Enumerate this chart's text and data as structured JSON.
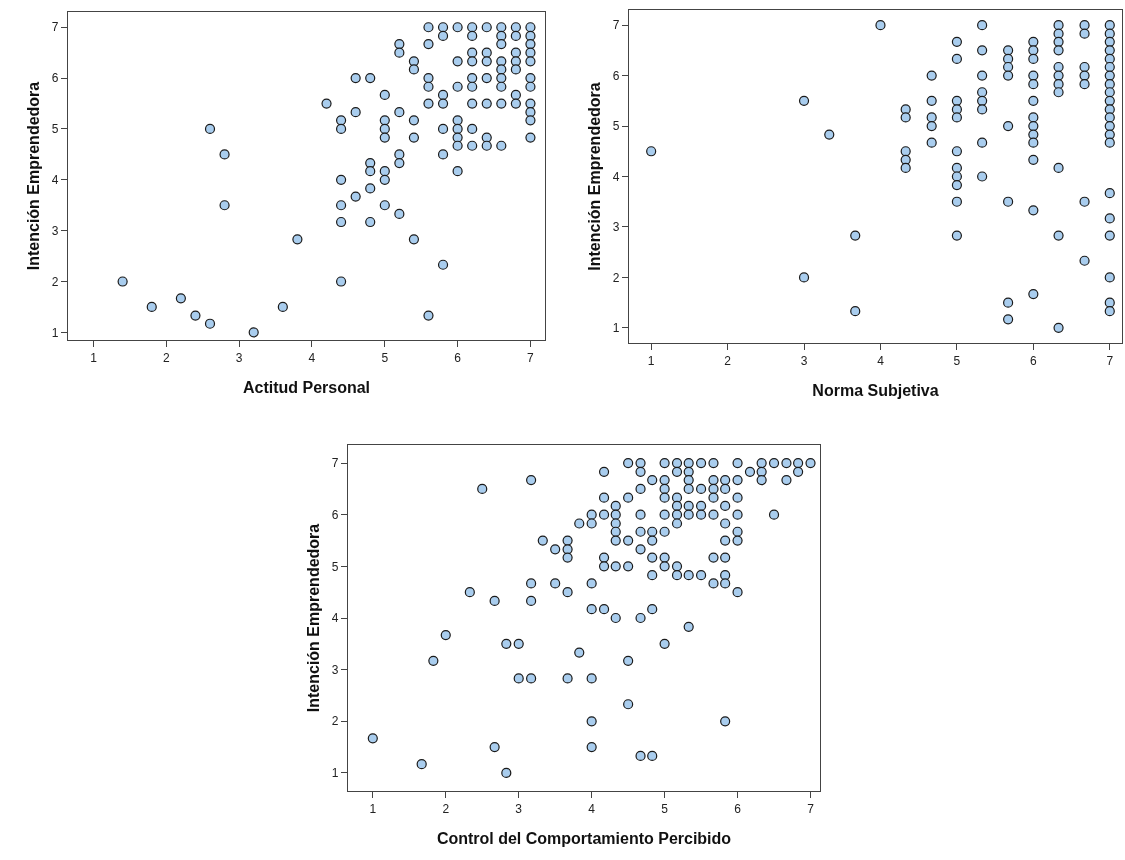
{
  "chart_data": [
    {
      "type": "scatter",
      "xlabel": "Actitud Personal",
      "ylabel": "Intención Emprendedora",
      "xlim": [
        0.65,
        7.2
      ],
      "ylim": [
        0.85,
        7.3
      ],
      "xticks": [
        1,
        2,
        3,
        4,
        5,
        6,
        7
      ],
      "yticks": [
        1,
        2,
        3,
        4,
        5,
        6,
        7
      ],
      "grid": false,
      "marker": "circle",
      "series": [
        {
          "color": "#a9cdee",
          "x": [
            1.4,
            1.8,
            2.2,
            2.4,
            2.6,
            2.6,
            2.8,
            2.8,
            3.2,
            3.6,
            3.8,
            4.2,
            4.4,
            4.4,
            4.4,
            4.4,
            4.4,
            4.4,
            4.6,
            4.6,
            4.6,
            4.8,
            4.8,
            4.8,
            4.8,
            4.8,
            5,
            5,
            5,
            5,
            5,
            5,
            5,
            5.2,
            5.2,
            5.2,
            5.2,
            5.2,
            5.2,
            5.4,
            5.4,
            5.4,
            5.4,
            5.4,
            5.6,
            5.6,
            5.6,
            5.6,
            5.6,
            5.6,
            5.8,
            5.8,
            5.8,
            5.8,
            5.8,
            5.8,
            5.8,
            6,
            6,
            6,
            6,
            6,
            6,
            6,
            6,
            6.2,
            6.2,
            6.2,
            6.2,
            6.2,
            6.2,
            6.2,
            6.2,
            6.2,
            6.4,
            6.4,
            6.4,
            6.4,
            6.4,
            6.4,
            6.4,
            6.6,
            6.6,
            6.6,
            6.6,
            6.6,
            6.6,
            6.6,
            6.6,
            6.6,
            6.8,
            6.8,
            6.8,
            6.8,
            6.8,
            6.8,
            6.8,
            7,
            7,
            7,
            7,
            7,
            7,
            7,
            7,
            7,
            7,
            7
          ],
          "values": [
            2,
            1.5,
            1.67,
            1.33,
            1.17,
            5,
            4.5,
            3.5,
            1,
            1.5,
            2.83,
            5.5,
            5.17,
            5,
            4,
            3.5,
            3.17,
            2,
            6,
            5.33,
            3.67,
            6,
            4.33,
            4.17,
            3.83,
            3.17,
            5.67,
            5.17,
            5,
            4.83,
            4.17,
            4,
            3.5,
            6.67,
            6.5,
            5.33,
            4.5,
            4.33,
            3.33,
            6.33,
            6.17,
            5.17,
            4.83,
            2.83,
            7,
            6.67,
            6,
            5.83,
            5.5,
            1.33,
            7,
            6.83,
            5.67,
            5.5,
            5,
            4.5,
            2.33,
            7,
            6.33,
            5.83,
            5.17,
            5,
            4.83,
            4.67,
            4.17,
            7,
            6.83,
            6.5,
            6.33,
            6,
            5.83,
            5.5,
            5,
            4.67,
            7,
            6.5,
            6.33,
            6,
            5.5,
            4.83,
            4.67,
            7,
            6.83,
            6.67,
            6.33,
            6.17,
            6,
            5.83,
            5.5,
            4.67,
            7,
            6.83,
            6.5,
            6.33,
            6.17,
            5.67,
            5.5,
            7,
            6.83,
            6.67,
            6.5,
            6.33,
            6,
            5.83,
            5.5,
            5.33,
            5.17,
            4.83
          ]
        }
      ]
    },
    {
      "type": "scatter",
      "xlabel": "Norma Subjetiva",
      "ylabel": "Intención Emprendedora",
      "xlim": [
        0.71,
        7.16
      ],
      "ylim": [
        0.7,
        7.3
      ],
      "xticks": [
        1,
        2,
        3,
        4,
        5,
        6,
        7
      ],
      "yticks": [
        1,
        2,
        3,
        4,
        5,
        6,
        7
      ],
      "grid": false,
      "marker": "circle",
      "series": [
        {
          "color": "#a9cdee",
          "x": [
            1,
            3,
            3,
            3.33,
            3.67,
            3.67,
            4,
            4.33,
            4.33,
            4.33,
            4.33,
            4.33,
            4.67,
            4.67,
            4.67,
            4.67,
            4.67,
            5,
            5,
            5,
            5,
            5,
            5,
            5,
            5,
            5,
            5,
            5,
            5.33,
            5.33,
            5.33,
            5.33,
            5.33,
            5.33,
            5.33,
            5.33,
            5.67,
            5.67,
            5.67,
            5.67,
            5.67,
            5.67,
            5.67,
            5.67,
            6,
            6,
            6,
            6,
            6,
            6,
            6,
            6,
            6,
            6,
            6,
            6,
            6,
            6.33,
            6.33,
            6.33,
            6.33,
            6.33,
            6.33,
            6.33,
            6.33,
            6.33,
            6.33,
            6.33,
            6.67,
            6.67,
            6.67,
            6.67,
            6.67,
            6.67,
            6.67,
            7,
            7,
            7,
            7,
            7,
            7,
            7,
            7,
            7,
            7,
            7,
            7,
            7,
            7,
            7,
            7,
            7,
            7,
            7,
            7,
            7
          ],
          "values": [
            4.5,
            5.5,
            2,
            4.83,
            2.83,
            1.33,
            7,
            5.33,
            5.17,
            4.5,
            4.33,
            4.17,
            6,
            5.5,
            5.17,
            5,
            4.67,
            6.67,
            6.33,
            5.5,
            5.33,
            5.17,
            4.5,
            4.17,
            4,
            3.83,
            3.5,
            2.83,
            7,
            6.5,
            6,
            5.67,
            5.5,
            5.33,
            4.67,
            4,
            6.5,
            6.33,
            6.17,
            6,
            5,
            3.5,
            1.5,
            1.17,
            6.67,
            6.5,
            6.33,
            6,
            5.83,
            5.5,
            5.17,
            5,
            4.83,
            4.67,
            4.33,
            3.33,
            1.67,
            7,
            6.83,
            6.67,
            6.5,
            6.17,
            6,
            5.83,
            5.67,
            4.17,
            2.83,
            1,
            7,
            6.83,
            6.17,
            6,
            5.83,
            3.5,
            2.33,
            7,
            6.83,
            6.67,
            6.5,
            6.33,
            6.17,
            6,
            5.83,
            5.67,
            5.5,
            5.33,
            5.17,
            5,
            4.83,
            4.67,
            3.67,
            3.17,
            2.83,
            2,
            1.5,
            1.33
          ]
        }
      ]
    },
    {
      "type": "scatter",
      "xlabel": "Control del Comportamiento Percibido",
      "ylabel": "Intención Emprendedora",
      "xlim": [
        0.66,
        7.13
      ],
      "ylim": [
        0.65,
        7.35
      ],
      "xticks": [
        1,
        2,
        3,
        4,
        5,
        6,
        7
      ],
      "yticks": [
        1,
        2,
        3,
        4,
        5,
        6,
        7
      ],
      "grid": false,
      "marker": "circle",
      "series": [
        {
          "color": "#a9cdee",
          "x": [
            1,
            1.67,
            1.83,
            2,
            2.33,
            2.5,
            2.67,
            2.67,
            2.83,
            2.83,
            3,
            3,
            3.17,
            3.17,
            3.17,
            3.17,
            3.33,
            3.5,
            3.5,
            3.67,
            3.67,
            3.67,
            3.67,
            3.67,
            3.83,
            3.83,
            4,
            4,
            4.17,
            4.17,
            4.17,
            4.33,
            4.33,
            4.33,
            4.33,
            4.33,
            4.5,
            4.5,
            4.5,
            4.67,
            4.67,
            4.67,
            4.67,
            4.67,
            4.67,
            4.83,
            4.83,
            4.83,
            5,
            5,
            5,
            5,
            5,
            5,
            5.17,
            5.17,
            5.17,
            5.17,
            5.17,
            5.17,
            5.33,
            5.33,
            5.33,
            5.33,
            5.33,
            5.33,
            5.5,
            5.5,
            5.5,
            5.5,
            5.67,
            5.67,
            5.67,
            5.67,
            5.67,
            5.83,
            5.83,
            5.83,
            5.83,
            5.83,
            6,
            6,
            6,
            6,
            6,
            6,
            6.17,
            6.33,
            6.33,
            6.33,
            6.5,
            6.5,
            6.67,
            6.67,
            6.83,
            6.83,
            7,
            4.17,
            4.17,
            4.33,
            4.5,
            4.83,
            4.83,
            5,
            5,
            5.17,
            5.17,
            5.33,
            5.5,
            5.67,
            5.67,
            5.83,
            5.83,
            5.83,
            6,
            4,
            4,
            4.17,
            4.33,
            4.67,
            4.83,
            5.33,
            5,
            4.5,
            4,
            4.5,
            4,
            5.83,
            4,
            4.67,
            4.83
          ],
          "values": [
            1.67,
            1.17,
            3.17,
            3.67,
            4.5,
            6.5,
            4.33,
            1.5,
            3.5,
            1,
            3.5,
            2.83,
            6.67,
            4.67,
            4.33,
            2.83,
            5.5,
            5.33,
            4.67,
            5.5,
            5.33,
            5.17,
            4.5,
            2.83,
            5.83,
            3.33,
            6,
            5.83,
            6.83,
            6.33,
            6,
            6.17,
            6,
            5.83,
            5.67,
            5.5,
            7,
            6.33,
            5.5,
            7,
            6.83,
            6.5,
            6,
            5.67,
            5.33,
            6.67,
            5.67,
            5.5,
            7,
            6.67,
            6.5,
            6.33,
            6,
            5.67,
            7,
            6.83,
            6.33,
            6.17,
            6,
            5.83,
            7,
            6.83,
            6.67,
            6.5,
            6.17,
            6,
            7,
            6.5,
            6.17,
            6,
            7,
            6.67,
            6.5,
            6.33,
            6,
            6.67,
            6.5,
            6.17,
            5.83,
            5.5,
            7,
            6.67,
            6.33,
            6,
            5.67,
            5.5,
            6.83,
            7,
            6.83,
            6.67,
            7,
            6,
            7,
            6.67,
            7,
            6.83,
            7,
            5.17,
            5,
            5,
            5,
            5.17,
            4.83,
            5.17,
            5,
            5,
            4.83,
            4.83,
            4.83,
            5.17,
            4.67,
            5.17,
            4.83,
            4.67,
            4.5,
            4.67,
            4.17,
            4.17,
            4,
            4,
            4.17,
            3.83,
            3.5,
            3.17,
            2.83,
            2.33,
            2,
            2,
            1.5,
            1.33,
            1.33
          ]
        }
      ]
    }
  ]
}
